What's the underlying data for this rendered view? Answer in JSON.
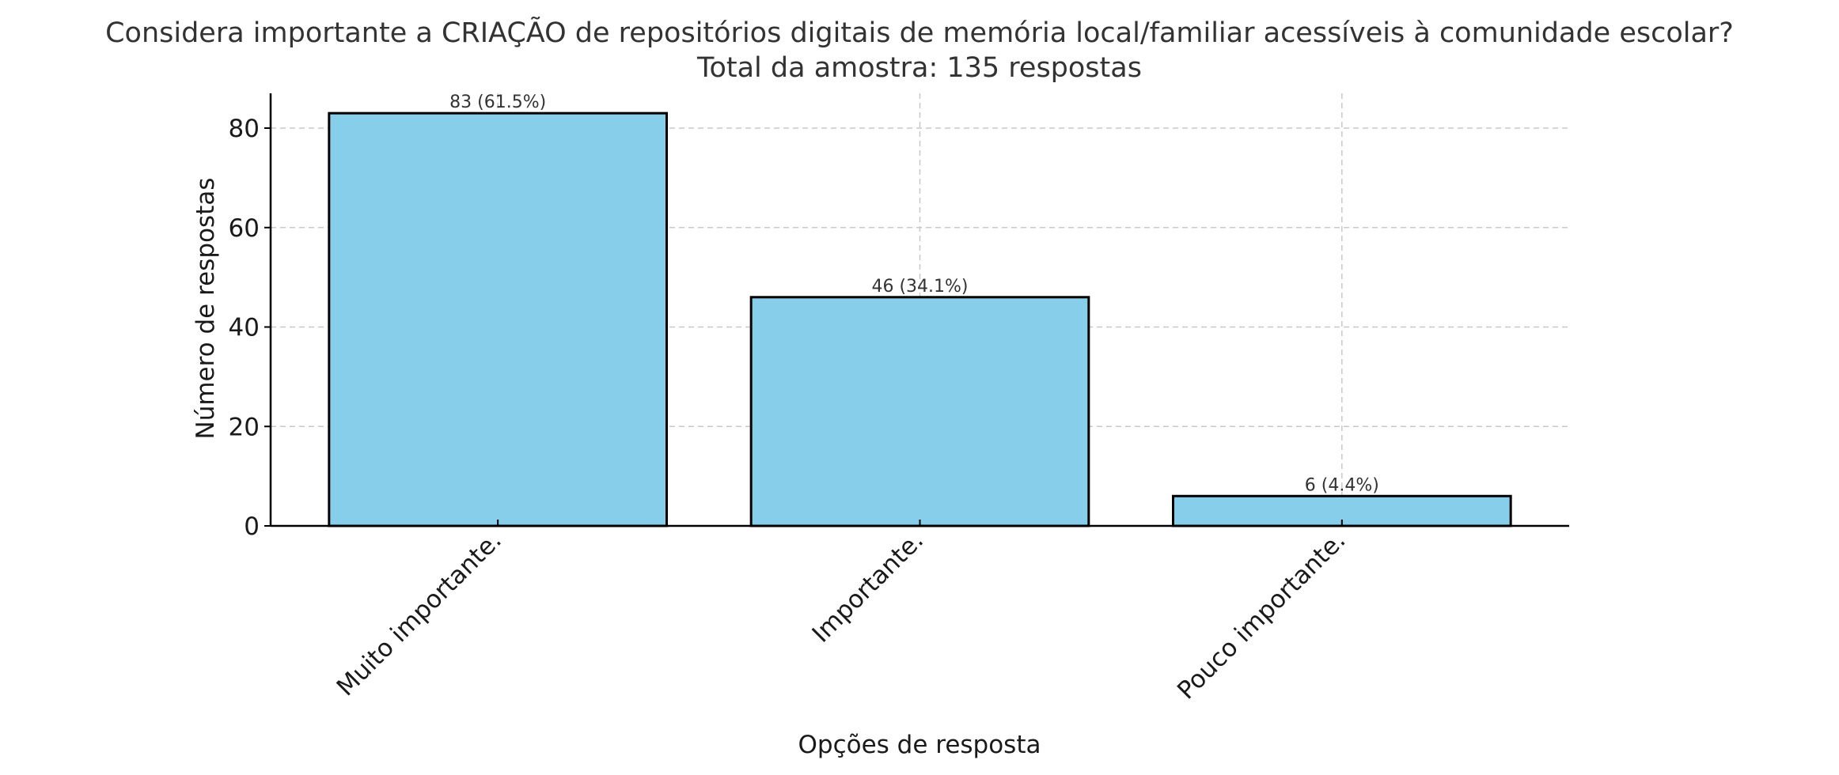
{
  "chart_data": {
    "type": "bar",
    "title": "Considera importante a CRIAÇÃO de repositórios digitais de memória local/familiar acessíveis à comunidade escolar?",
    "subtitle": "Total da amostra: 135 respostas",
    "xlabel": "Opções de resposta",
    "ylabel": "Número de respostas",
    "categories": [
      "Muito importante.",
      "Importante.",
      "Pouco importante."
    ],
    "values": [
      83,
      46,
      6
    ],
    "data_labels": [
      "83 (61.5%)",
      "46 (34.1%)",
      "6 (4.4%)"
    ],
    "ylim": [
      0,
      87
    ],
    "yticks": [
      0,
      20,
      40,
      60,
      80
    ],
    "grid": true,
    "bar_color": "#87CEEB",
    "edge_color": "#000000"
  }
}
